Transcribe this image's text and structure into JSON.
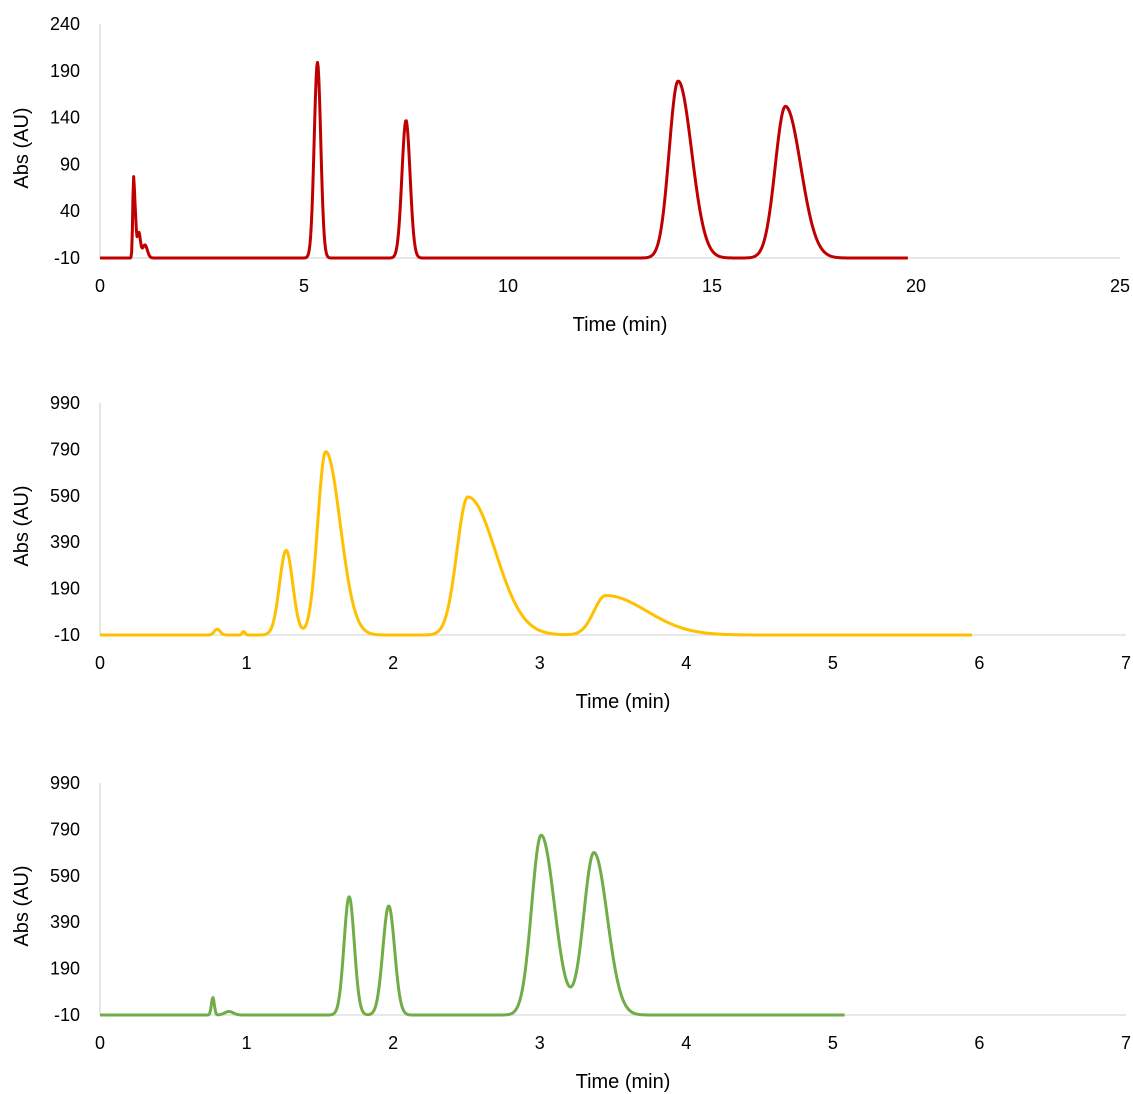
{
  "chart_data": [
    {
      "type": "line",
      "xlabel": "Time (min)",
      "ylabel": "Abs (AU)",
      "xlim": [
        0,
        25
      ],
      "ylim": [
        -10,
        240
      ],
      "xticks": [
        0,
        5,
        10,
        15,
        20,
        25
      ],
      "yticks": [
        -10,
        40,
        90,
        140,
        190,
        240
      ],
      "x_end": 19.8,
      "baseline": -10,
      "color": "#c00000",
      "peaks": [
        {
          "t": 0.82,
          "height": 72,
          "width": 0.02
        },
        {
          "t": 0.86,
          "height": 45,
          "width": 0.025
        },
        {
          "t": 0.95,
          "height": 27,
          "width": 0.04
        },
        {
          "t": 1.1,
          "height": 14,
          "width": 0.06
        },
        {
          "t": 5.33,
          "height": 209,
          "width": 0.08
        },
        {
          "t": 7.5,
          "height": 147,
          "width": 0.1
        },
        {
          "t": 14.17,
          "height": 189,
          "width": 0.22,
          "tail": 0.05
        },
        {
          "t": 16.8,
          "height": 162,
          "width": 0.25,
          "tail": 0.05
        }
      ]
    },
    {
      "type": "line",
      "xlabel": "Time (min)",
      "ylabel": "Abs (AU)",
      "xlim": [
        0,
        7
      ],
      "ylim": [
        -10,
        990
      ],
      "xticks": [
        0,
        1,
        2,
        3,
        4,
        5,
        6,
        7
      ],
      "yticks": [
        -10,
        190,
        390,
        590,
        790,
        990
      ],
      "x_end": 5.95,
      "baseline": -10,
      "color": "#ffc000",
      "peaks": [
        {
          "t": 0.8,
          "height": 25,
          "width": 0.02
        },
        {
          "t": 0.98,
          "height": 15,
          "width": 0.01
        },
        {
          "t": 1.27,
          "height": 365,
          "width": 0.045
        },
        {
          "t": 1.54,
          "height": 790,
          "width": 0.055,
          "tail": 0.08
        },
        {
          "t": 2.51,
          "height": 595,
          "width": 0.075,
          "tail": 0.15
        },
        {
          "t": 3.45,
          "height": 170,
          "width": 0.08,
          "tail": 0.25
        }
      ]
    },
    {
      "type": "line",
      "xlabel": "Time (min)",
      "ylabel": "Abs (AU)",
      "xlim": [
        0,
        7
      ],
      "ylim": [
        -10,
        990
      ],
      "xticks": [
        0,
        1,
        2,
        3,
        4,
        5,
        6,
        7
      ],
      "yticks": [
        -10,
        190,
        390,
        590,
        790,
        990
      ],
      "x_end": 5.08,
      "baseline": -10,
      "color": "#70ad47",
      "peaks": [
        {
          "t": 0.77,
          "height": 75,
          "width": 0.01
        },
        {
          "t": 0.88,
          "height": 15,
          "width": 0.03
        },
        {
          "t": 1.7,
          "height": 510,
          "width": 0.035
        },
        {
          "t": 1.97,
          "height": 470,
          "width": 0.04
        },
        {
          "t": 3.01,
          "height": 775,
          "width": 0.065,
          "tail": 0.04
        },
        {
          "t": 3.37,
          "height": 700,
          "width": 0.07,
          "tail": 0.03
        }
      ]
    }
  ]
}
